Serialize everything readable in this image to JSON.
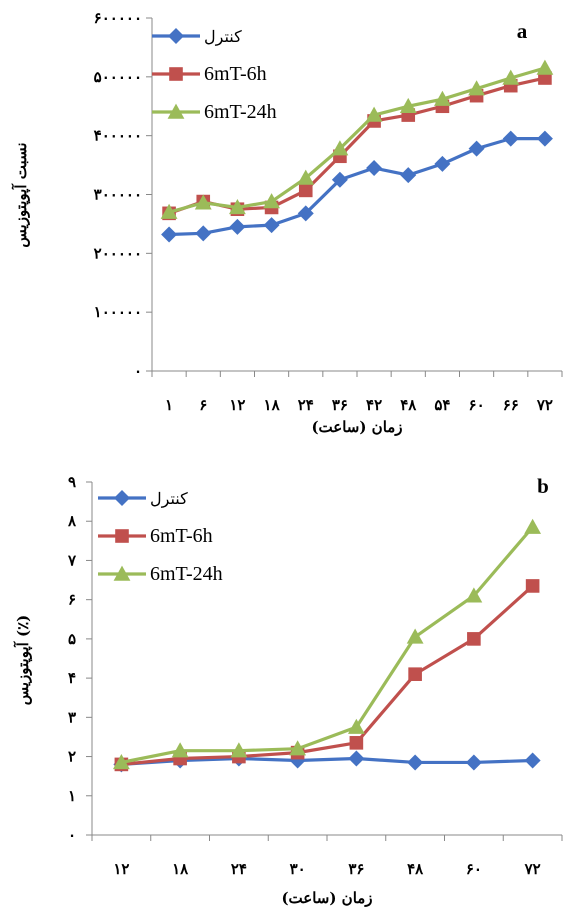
{
  "chart_data": [
    {
      "type": "line",
      "panel_label": "a",
      "ylabel": "نسبت آپوپتوزیس",
      "xlabel": "زمان (ساعت)",
      "categories": [
        "۱",
        "۶",
        "۱۲",
        "۱۸",
        "۲۴",
        "۳۶",
        "۴۲",
        "۴۸",
        "۵۴",
        "۶۰",
        "۶۶",
        "۷۲"
      ],
      "yticks": [
        "۰",
        "۱۰۰۰۰۰",
        "۲۰۰۰۰۰",
        "۳۰۰۰۰۰",
        "۴۰۰۰۰۰",
        "۵۰۰۰۰۰",
        "۶۰۰۰۰۰"
      ],
      "ylim": [
        0,
        600000
      ],
      "grid": false,
      "legend_position": "top-left",
      "series": [
        {
          "name": "کنترل",
          "color": "#4472C4",
          "marker": "diamond",
          "values": [
            232000,
            234000,
            245000,
            248000,
            268000,
            325000,
            345000,
            333000,
            352000,
            378000,
            395000,
            395000
          ]
        },
        {
          "name": "6mT-6h",
          "color": "#C0504D",
          "marker": "square",
          "values": [
            268000,
            288000,
            275000,
            278000,
            307000,
            365000,
            425000,
            435000,
            450000,
            468000,
            485000,
            498000
          ]
        },
        {
          "name": "6mT-24h",
          "color": "#9BBB59",
          "marker": "triangle",
          "values": [
            270000,
            286000,
            278000,
            288000,
            328000,
            378000,
            435000,
            450000,
            462000,
            480000,
            498000,
            515000
          ]
        }
      ]
    },
    {
      "type": "line",
      "panel_label": "b",
      "ylabel": "آپوپتوزیس (٪)",
      "xlabel": "زمان (ساعت)",
      "categories": [
        "۱۲",
        "۱۸",
        "۲۴",
        "۳۰",
        "۳۶",
        "۴۸",
        "۶۰",
        "۷۲"
      ],
      "yticks": [
        "۰",
        "۱",
        "۲",
        "۳",
        "۴",
        "۵",
        "۶",
        "۷",
        "۸",
        "۹"
      ],
      "ylim": [
        0,
        9
      ],
      "grid": false,
      "legend_position": "top-left",
      "series": [
        {
          "name": "کنترل",
          "color": "#4472C4",
          "marker": "diamond",
          "values": [
            1.8,
            1.9,
            1.95,
            1.9,
            1.95,
            1.85,
            1.85,
            1.9
          ]
        },
        {
          "name": "6mT-6h",
          "color": "#C0504D",
          "marker": "square",
          "values": [
            1.8,
            1.95,
            2.0,
            2.1,
            2.35,
            4.1,
            5.0,
            6.35
          ]
        },
        {
          "name": "6mT-24h",
          "color": "#9BBB59",
          "marker": "triangle",
          "values": [
            1.85,
            2.15,
            2.15,
            2.2,
            2.75,
            5.05,
            6.1,
            7.85
          ]
        }
      ]
    }
  ]
}
